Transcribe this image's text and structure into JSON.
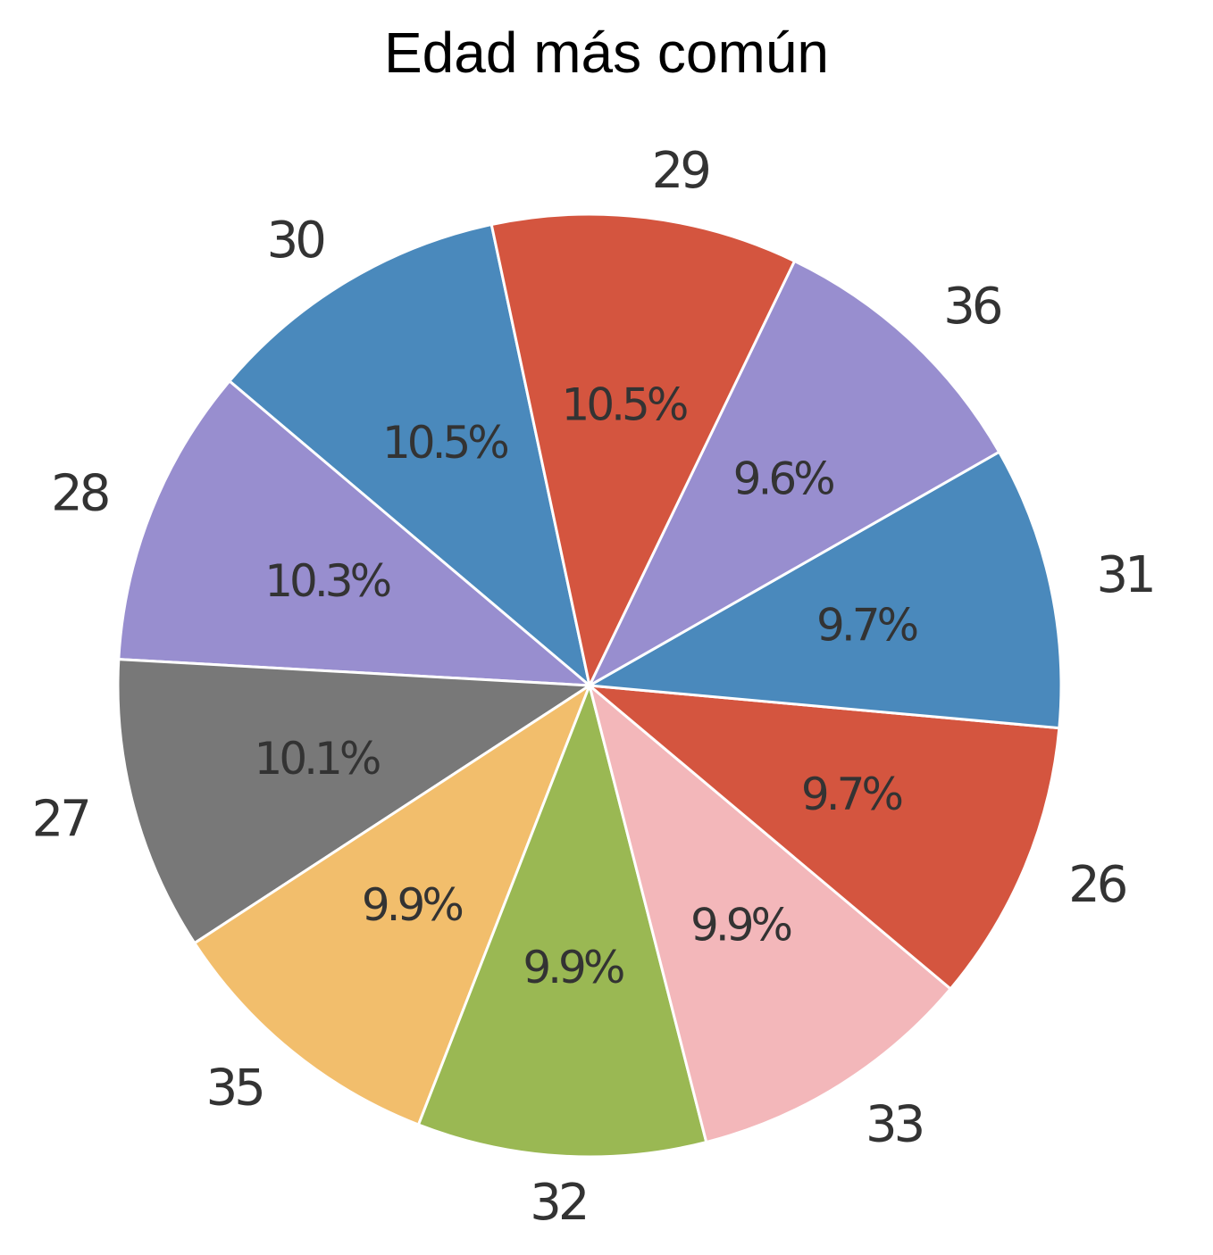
{
  "chart_data": {
    "type": "pie",
    "title": "Edad más común",
    "slices": [
      {
        "label": "30",
        "percent": 10.5,
        "percent_label": "10.5%",
        "color": "#4a89bc"
      },
      {
        "label": "28",
        "percent": 10.3,
        "percent_label": "10.3%",
        "color": "#988ecf"
      },
      {
        "label": "27",
        "percent": 10.1,
        "percent_label": "10.1%",
        "color": "#787878"
      },
      {
        "label": "35",
        "percent": 9.9,
        "percent_label": "9.9%",
        "color": "#f2be6c"
      },
      {
        "label": "32",
        "percent": 9.9,
        "percent_label": "9.9%",
        "color": "#9ab853"
      },
      {
        "label": "33",
        "percent": 9.9,
        "percent_label": "9.9%",
        "color": "#f3b7ba"
      },
      {
        "label": "26",
        "percent": 9.7,
        "percent_label": "9.7%",
        "color": "#d4553f"
      },
      {
        "label": "31",
        "percent": 9.7,
        "percent_label": "9.7%",
        "color": "#4a89bc"
      },
      {
        "label": "36",
        "percent": 9.6,
        "percent_label": "9.6%",
        "color": "#988ecf"
      },
      {
        "label": "29",
        "percent": 10.5,
        "percent_label": "10.5%",
        "color": "#d4553f"
      }
    ],
    "direction": "counterclockwise",
    "legend": "none"
  }
}
